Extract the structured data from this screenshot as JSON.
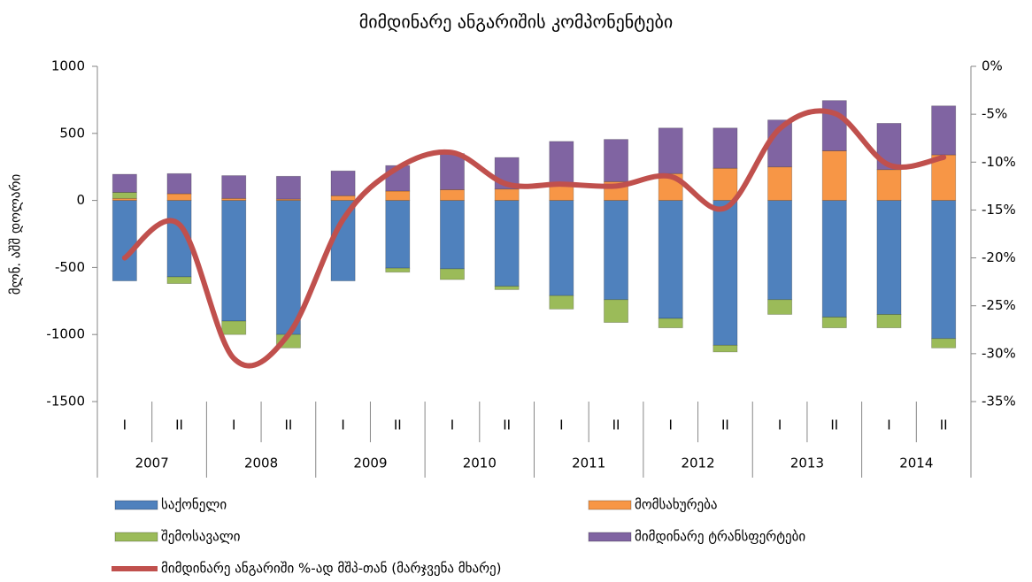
{
  "chart_data": {
    "type": "stacked-bar-line",
    "title": "მიმდინარე ანგარიშის კომპონენტები",
    "y_label": "მლნ. აშშ დოლარი",
    "categories": [
      "I",
      "II",
      "I",
      "II",
      "I",
      "II",
      "I",
      "II",
      "I",
      "II",
      "I",
      "II",
      "I",
      "II",
      "I",
      "II"
    ],
    "years": [
      "2007",
      "2008",
      "2009",
      "2010",
      "2011",
      "2012",
      "2013",
      "2014"
    ],
    "series": [
      {
        "name": "საქონელი",
        "color": "#4f81bd",
        "values": [
          -600,
          -570,
          -900,
          -1000,
          -600,
          -505,
          -510,
          -640,
          -710,
          -740,
          -880,
          -1080,
          -740,
          -870,
          -850,
          -1030
        ]
      },
      {
        "name": "მომსახურება",
        "color": "#f79646",
        "values": [
          15,
          50,
          15,
          10,
          35,
          70,
          80,
          85,
          110,
          140,
          200,
          240,
          250,
          370,
          230,
          340
        ]
      },
      {
        "name": "შემოსავალი",
        "color": "#9bbb59",
        "values": [
          45,
          -50,
          -100,
          -100,
          0,
          -30,
          -80,
          -25,
          -100,
          -170,
          -70,
          -50,
          -110,
          -80,
          -100,
          -70
        ]
      },
      {
        "name": "მიმდინარე ტრანსფერტები",
        "color": "#8064a2",
        "values": [
          135,
          150,
          170,
          170,
          185,
          190,
          270,
          235,
          330,
          315,
          340,
          300,
          350,
          375,
          345,
          365
        ]
      },
      {
        "name": "მიმდინარე ანგარიში %-ად მშპ-თან (მარჯვენა მხარე)",
        "color": "#c0504d",
        "axis": "y2",
        "values": [
          -20,
          -16.5,
          -30.5,
          -28,
          -16,
          -10.6,
          -9,
          -12.3,
          -12.3,
          -12.5,
          -11.5,
          -14.8,
          -6.5,
          -4.9,
          -10.3,
          -9.5
        ]
      }
    ],
    "ylim": [
      -1500,
      1000
    ],
    "yticks": [
      -1500,
      -1000,
      -500,
      0,
      500,
      1000
    ],
    "y2lim": [
      -35,
      0
    ],
    "y2ticks": [
      {
        "value": -35,
        "label": "-35%"
      },
      {
        "value": -30,
        "label": "-30%"
      },
      {
        "value": -25,
        "label": "-25%"
      },
      {
        "value": -20,
        "label": "-20%"
      },
      {
        "value": -15,
        "label": "-15%"
      },
      {
        "value": -10,
        "label": "-10%"
      },
      {
        "value": -5,
        "label": "-5%"
      },
      {
        "value": 0,
        "label": "0%"
      }
    ],
    "grid": false
  }
}
